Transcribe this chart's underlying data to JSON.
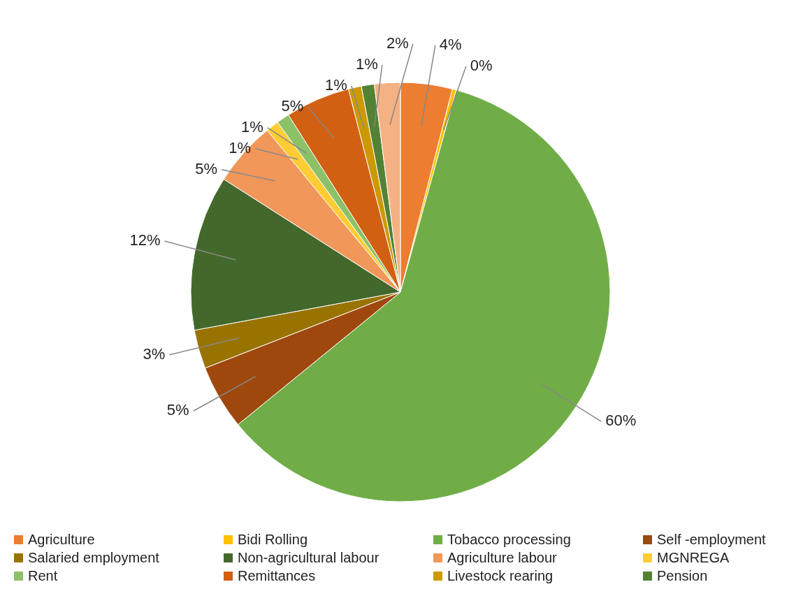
{
  "chart_data": {
    "type": "pie",
    "categories": [
      "Agriculture",
      "Bidi Rolling",
      "Tobacco processing",
      "Self -employment",
      "Salaried employment",
      "Non-agricultural labour",
      "Agriculture labour",
      "MGNREGA",
      "Rent",
      "Remittances",
      "Livestock rearing",
      "Pension",
      null
    ],
    "values": [
      4,
      0.3,
      60,
      5,
      3,
      12,
      5,
      1,
      1,
      5,
      1,
      1,
      2
    ],
    "value_labels": [
      "4%",
      "0%",
      "60%",
      "5%",
      "3%",
      "12%",
      "5%",
      "1%",
      "1%",
      "5%",
      "1%",
      "1%",
      "2%"
    ],
    "colors": [
      "#ed7d31",
      "#ffc000",
      "#70ad47",
      "#9e480e",
      "#997300",
      "#43682b",
      "#f1975a",
      "#ffcd33",
      "#8cc168",
      "#d26012",
      "#cc9a00",
      "#548235",
      "#f4b183"
    ],
    "legend": "bottom"
  }
}
